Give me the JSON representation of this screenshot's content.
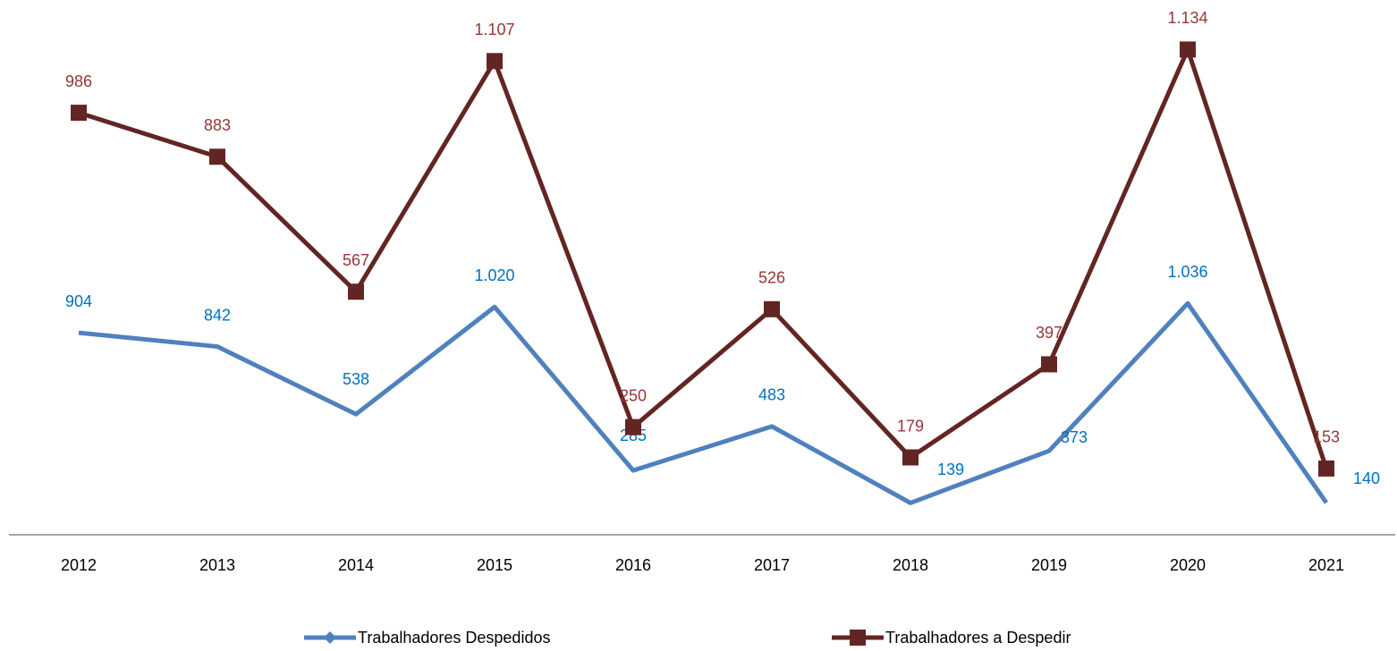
{
  "chart_data": {
    "type": "line",
    "categories": [
      "2012",
      "2013",
      "2014",
      "2015",
      "2016",
      "2017",
      "2018",
      "2019",
      "2020",
      "2021"
    ],
    "ylim": [
      0,
      2400
    ],
    "y2lim": [
      0,
      1250
    ],
    "series": [
      {
        "name": "Trabalhadores Despedidos",
        "color": "#4f81bd",
        "label_color": "#0070c0",
        "marker": "diamond",
        "values": [
          904,
          842,
          538,
          1020,
          285,
          483,
          139,
          373,
          1036,
          140
        ],
        "value_labels": [
          "904",
          "842",
          "538",
          "1.020",
          "285",
          "483",
          "139",
          "373",
          "1.036",
          "140"
        ]
      },
      {
        "name": "Trabalhadores a Despedir",
        "color": "#632523",
        "label_color": "#953735",
        "marker": "square",
        "axis": "y2",
        "values": [
          986,
          883,
          567,
          1107,
          250,
          526,
          179,
          397,
          1134,
          153
        ],
        "value_labels": [
          "986",
          "883",
          "567",
          "1.107",
          "250",
          "526",
          "179",
          "397",
          "1.134",
          "153"
        ]
      }
    ],
    "legend": "bottom"
  }
}
